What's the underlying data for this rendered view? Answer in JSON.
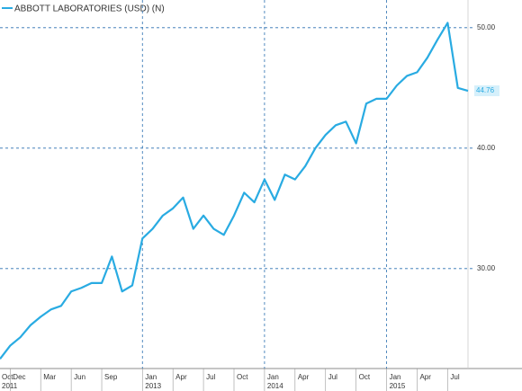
{
  "chart_data": {
    "type": "line",
    "legend": "ABBOTT LABORATORIES (USD) (N)",
    "color": "#29abe2",
    "x": [
      "2011-11",
      "2011-12",
      "2012-01",
      "2012-02",
      "2012-03",
      "2012-04",
      "2012-05",
      "2012-06",
      "2012-07",
      "2012-08",
      "2012-09",
      "2012-10",
      "2012-11",
      "2012-12",
      "2013-01",
      "2013-02",
      "2013-03",
      "2013-04",
      "2013-05",
      "2013-06",
      "2013-07",
      "2013-08",
      "2013-09",
      "2013-10",
      "2013-11",
      "2013-12",
      "2014-01",
      "2014-02",
      "2014-03",
      "2014-04",
      "2014-05",
      "2014-06",
      "2014-07",
      "2014-08",
      "2014-09",
      "2014-10",
      "2014-11",
      "2014-12",
      "2015-01",
      "2015-02",
      "2015-03",
      "2015-04",
      "2015-05",
      "2015-06",
      "2015-07",
      "2015-08",
      "2015-09"
    ],
    "values": [
      22.5,
      23.6,
      24.3,
      25.3,
      26.0,
      26.6,
      26.9,
      28.1,
      28.4,
      28.8,
      28.8,
      31.0,
      28.1,
      28.6,
      32.5,
      33.3,
      34.4,
      35.0,
      35.9,
      33.3,
      34.4,
      33.3,
      32.8,
      34.4,
      36.3,
      35.5,
      37.4,
      35.7,
      37.8,
      37.4,
      38.5,
      40.0,
      41.1,
      41.9,
      42.2,
      40.4,
      43.7,
      44.1,
      44.1,
      45.2,
      46.0,
      46.3,
      47.5,
      49.0,
      50.4,
      45.0,
      44.76
    ],
    "xlim": [
      "2011-11",
      "2015-09"
    ],
    "xticks": [
      {
        "value": "2011-10",
        "label": "Oct"
      },
      {
        "value": "2011-12",
        "label": "Dec"
      },
      {
        "value": "2012-03",
        "label": "Mar"
      },
      {
        "value": "2012-06",
        "label": "Jun"
      },
      {
        "value": "2012-09",
        "label": "Sep"
      },
      {
        "value": "2013-01",
        "label": "Jan"
      },
      {
        "value": "2013-04",
        "label": "Apr"
      },
      {
        "value": "2013-07",
        "label": "Jul"
      },
      {
        "value": "2013-10",
        "label": "Oct"
      },
      {
        "value": "2014-01",
        "label": "Jan"
      },
      {
        "value": "2014-04",
        "label": "Apr"
      },
      {
        "value": "2014-07",
        "label": "Jul"
      },
      {
        "value": "2014-10",
        "label": "Oct"
      },
      {
        "value": "2015-01",
        "label": "Jan"
      },
      {
        "value": "2015-04",
        "label": "Apr"
      },
      {
        "value": "2015-07",
        "label": "Jul"
      }
    ],
    "xtick_years": [
      {
        "value": "2011-10",
        "label": "2011"
      },
      {
        "value": "2013-01",
        "label": "2013"
      },
      {
        "value": "2014-01",
        "label": "2014"
      },
      {
        "value": "2015-01",
        "label": "2015"
      }
    ],
    "xgrid": [
      "2013-01",
      "2014-01",
      "2015-01"
    ],
    "ylim": [
      21.7,
      52.3
    ],
    "yticks": [
      {
        "value": 30,
        "label": "30.00"
      },
      {
        "value": 40,
        "label": "40.00"
      },
      {
        "value": 50,
        "label": "50.00"
      }
    ],
    "grid": true
  }
}
